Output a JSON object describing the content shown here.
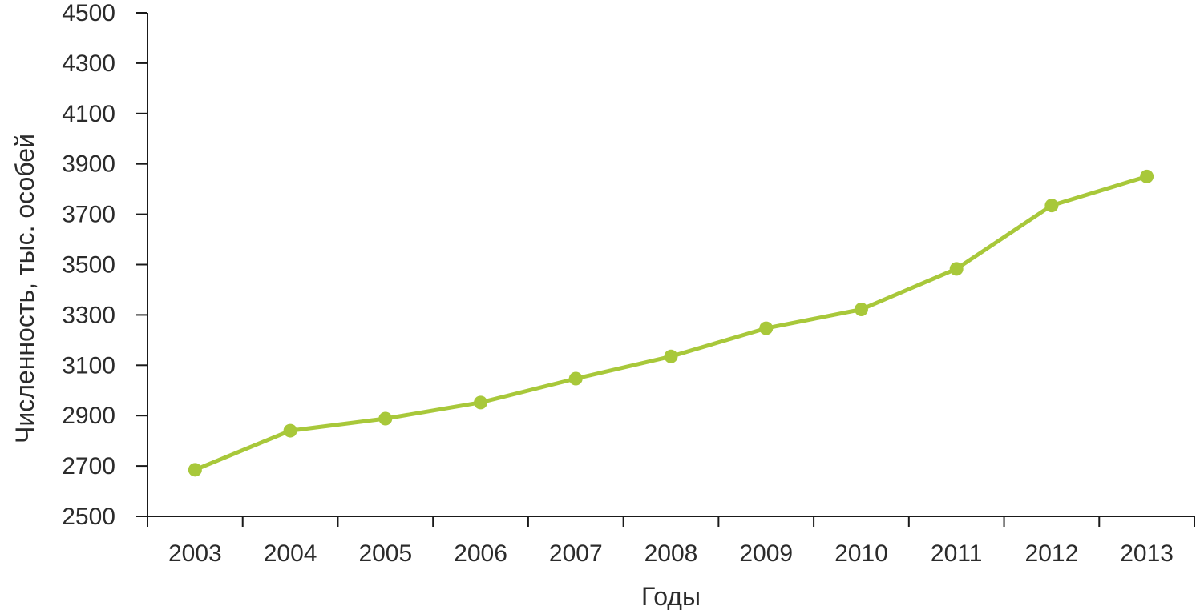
{
  "chart_data": {
    "type": "line",
    "title": "",
    "xlabel": "Годы",
    "ylabel": "Численность, тыс. особей",
    "categories": [
      "2003",
      "2004",
      "2005",
      "2006",
      "2007",
      "2008",
      "2009",
      "2010",
      "2011",
      "2012",
      "2013"
    ],
    "series": [
      {
        "values": [
          2685,
          2840,
          2888,
          2952,
          3047,
          3135,
          3247,
          3322,
          3483,
          3735,
          3850
        ],
        "color": "#a8c83a"
      }
    ],
    "y_ticks": [
      "2500",
      "2700",
      "2900",
      "3100",
      "3300",
      "3500",
      "3700",
      "3900",
      "4100",
      "4300",
      "4500"
    ],
    "ylim": [
      2500,
      4500
    ],
    "grid": false,
    "legend": "none",
    "axis_color": "#1a1a1a"
  }
}
